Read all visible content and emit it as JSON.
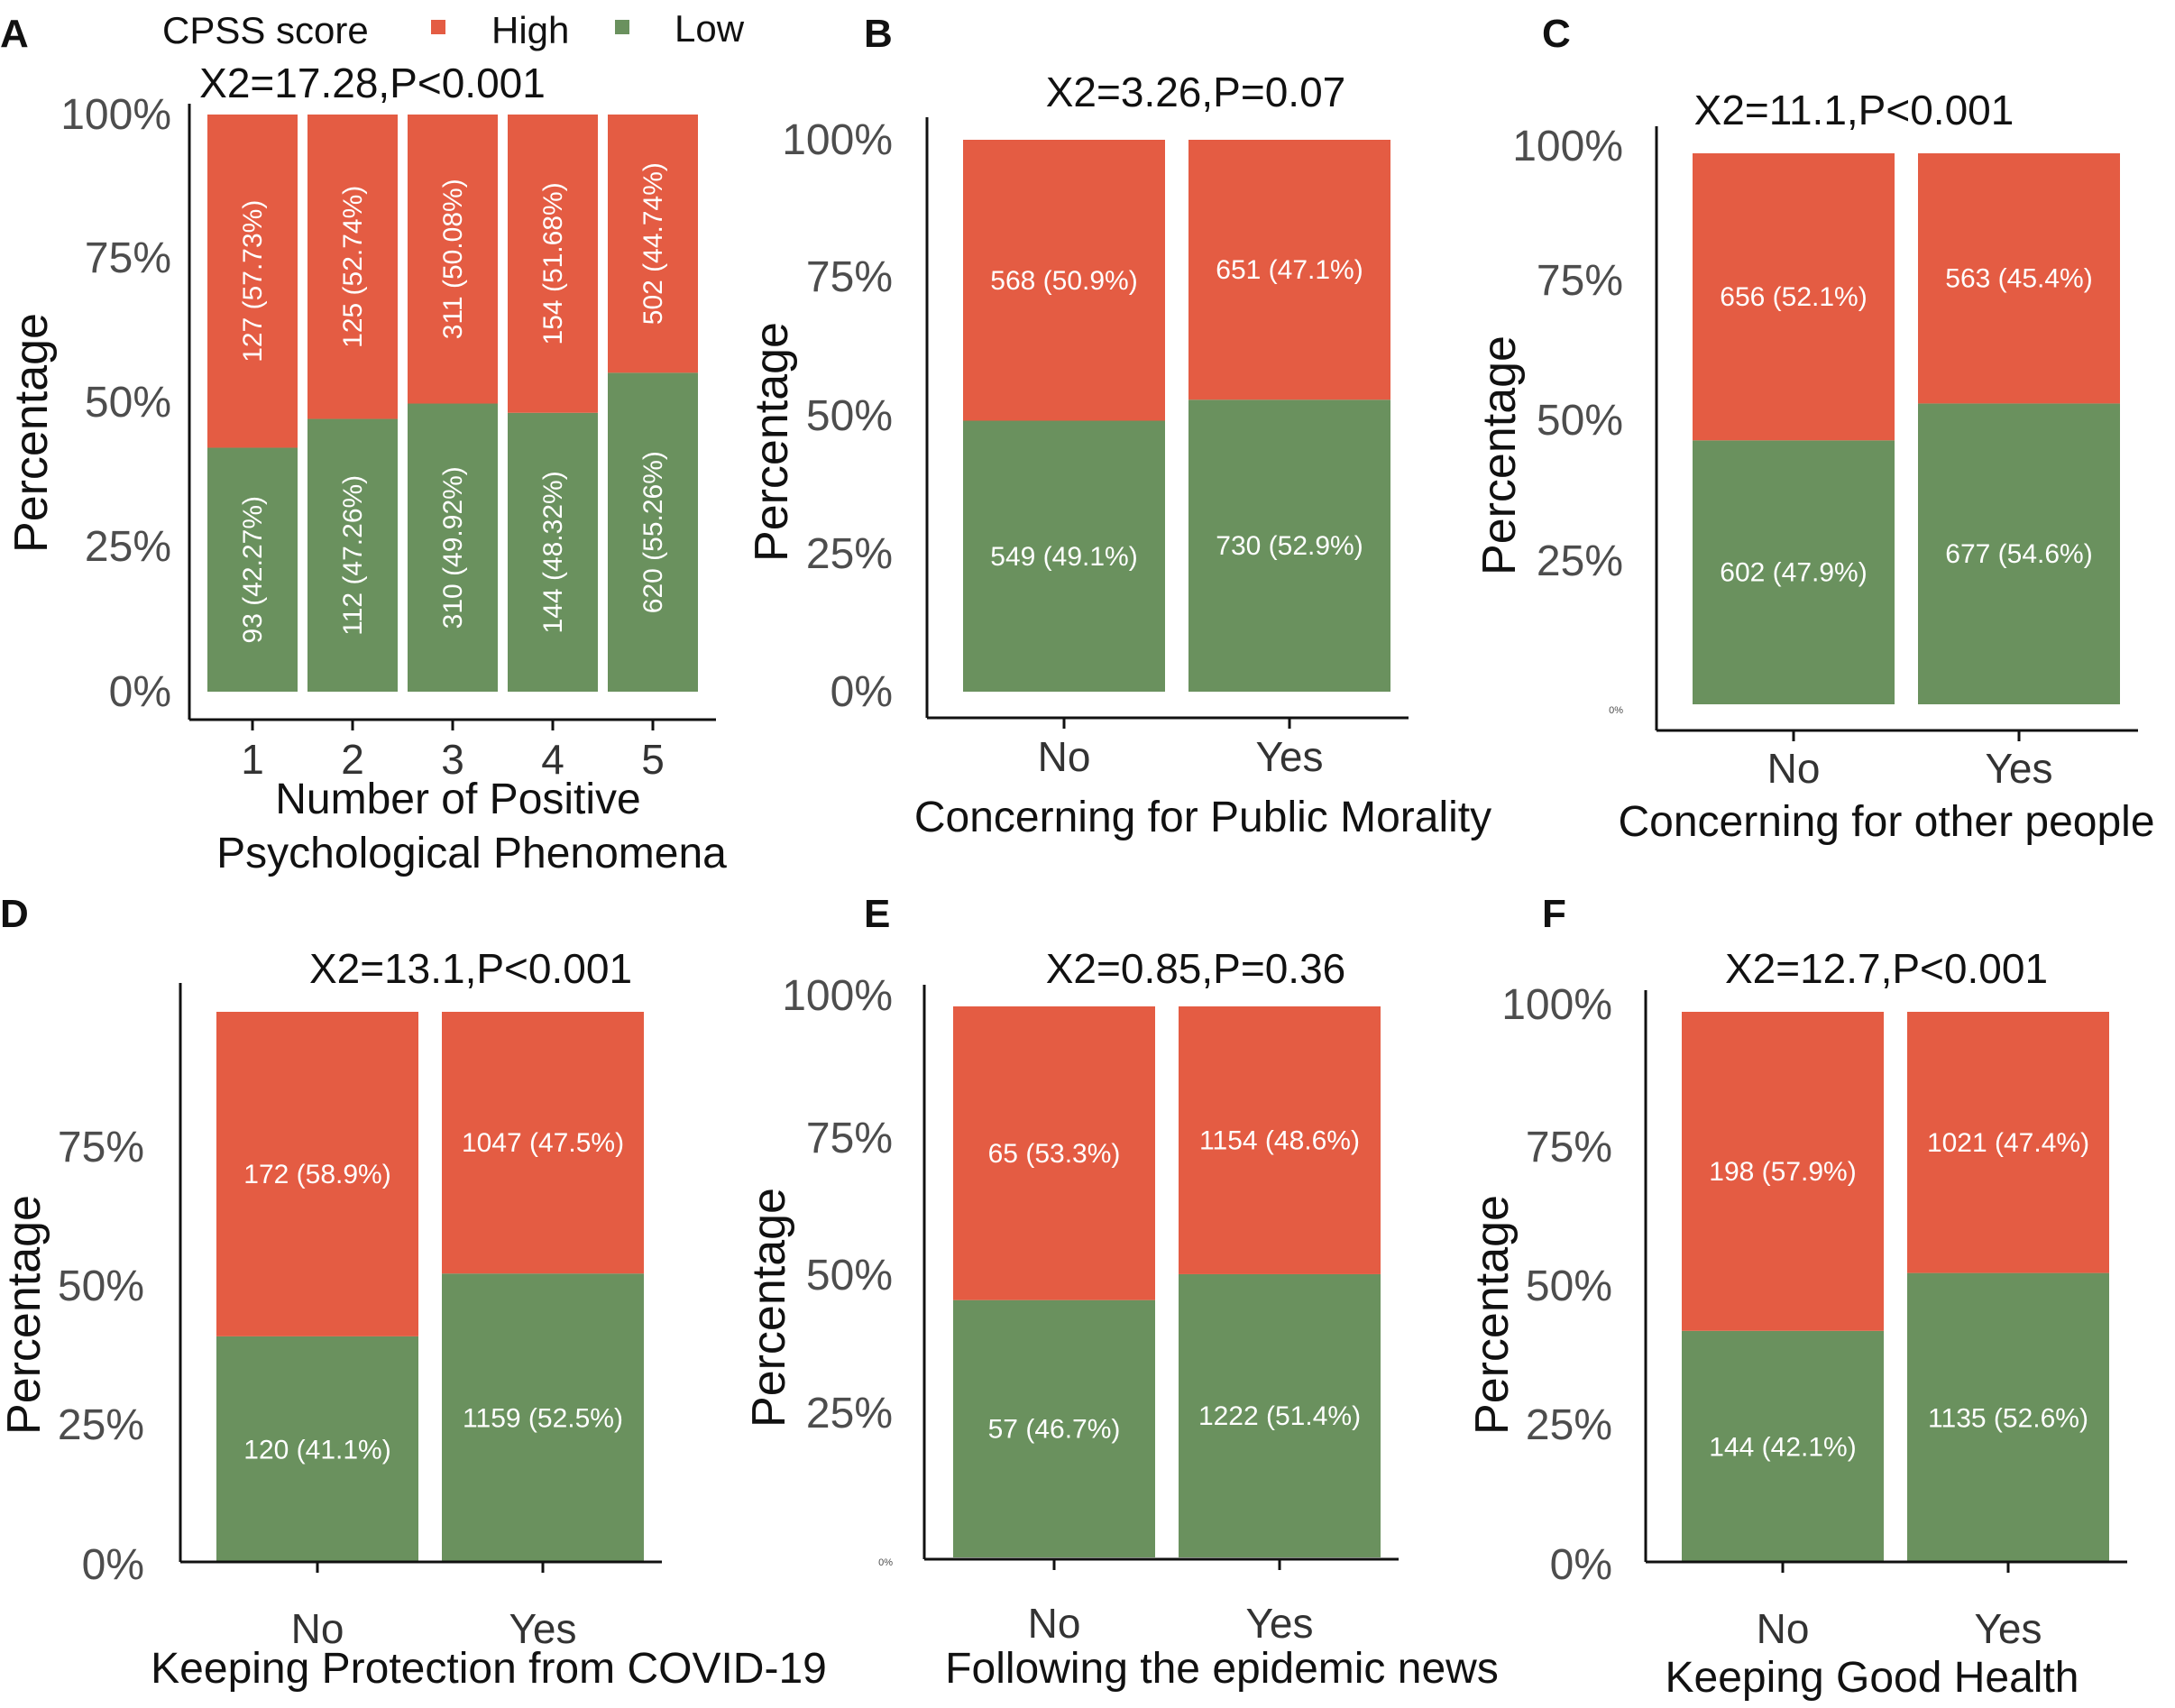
{
  "legend": {
    "title": "CPSS score",
    "items": [
      {
        "label": "High",
        "color": "#E45C43"
      },
      {
        "label": "Low",
        "color": "#6A915E"
      }
    ]
  },
  "chart_data": [
    {
      "panel": "A",
      "type": "bar",
      "stacked": true,
      "title": "X2=17.28,P<0.001",
      "ylabel": "Percentage",
      "xlabel": [
        "Number of Positive",
        "Psychological  Phenomena"
      ],
      "categories": [
        "1",
        "2",
        "3",
        "4",
        "5"
      ],
      "label_orientation": "vertical",
      "yticks": [
        "0%",
        "25%",
        "50%",
        "75%",
        "100%"
      ],
      "ylim": [
        0,
        100
      ],
      "series": [
        {
          "name": "Low",
          "color": "#6A915E",
          "values": [
            42.27,
            47.26,
            49.92,
            48.32,
            55.26
          ],
          "labels": [
            "93 (42.27%)",
            "112 (47.26%)",
            "310 (49.92%)",
            "144 (48.32%)",
            "620 (55.26%)"
          ]
        },
        {
          "name": "High",
          "color": "#E45C43",
          "values": [
            57.73,
            52.74,
            50.08,
            51.68,
            44.74
          ],
          "labels": [
            "127 (57.73%)",
            "125 (52.74%)",
            "311 (50.08%)",
            "154 (51.68%)",
            "502 (44.74%)"
          ]
        }
      ]
    },
    {
      "panel": "B",
      "type": "bar",
      "stacked": true,
      "title": "X2=3.26,P=0.07",
      "ylabel": "Percentage",
      "xlabel": [
        "Concerning for Public Morality"
      ],
      "categories": [
        "No",
        "Yes"
      ],
      "label_orientation": "horizontal",
      "yticks": [
        "0%",
        "25%",
        "50%",
        "75%",
        "100%"
      ],
      "ylim": [
        0,
        100
      ],
      "series": [
        {
          "name": "Low",
          "color": "#6A915E",
          "values": [
            49.1,
            52.9
          ],
          "labels": [
            "549 (49.1%)",
            "730 (52.9%)"
          ]
        },
        {
          "name": "High",
          "color": "#E45C43",
          "values": [
            50.9,
            47.1
          ],
          "labels": [
            "568 (50.9%)",
            "651 (47.1%)"
          ]
        }
      ]
    },
    {
      "panel": "C",
      "type": "bar",
      "stacked": true,
      "title": "X2=11.1,P<0.001",
      "ylabel": "Percentage",
      "xlabel": [
        "Concerning for other people"
      ],
      "categories": [
        "No",
        "Yes"
      ],
      "label_orientation": "horizontal",
      "yticks": [
        "0%",
        "25%",
        "50%",
        "75%",
        "100%"
      ],
      "ylim": [
        0,
        100
      ],
      "series": [
        {
          "name": "Low",
          "color": "#6A915E",
          "values": [
            47.9,
            54.6
          ],
          "labels": [
            "602 (47.9%)",
            "677 (54.6%)"
          ]
        },
        {
          "name": "High",
          "color": "#E45C43",
          "values": [
            52.1,
            45.4
          ],
          "labels": [
            "656 (52.1%)",
            "563 (45.4%)"
          ]
        }
      ]
    },
    {
      "panel": "D",
      "type": "bar",
      "stacked": true,
      "title": "X2=13.1,P<0.001",
      "ylabel": "Percentage",
      "xlabel": [
        "Keeping Protection from COVID-19"
      ],
      "categories": [
        "No",
        "Yes"
      ],
      "label_orientation": "horizontal",
      "yticks": [
        "0%",
        "25%",
        "50%",
        "75%"
      ],
      "ylim": [
        0,
        100
      ],
      "series": [
        {
          "name": "Low",
          "color": "#6A915E",
          "values": [
            41.1,
            52.5
          ],
          "labels": [
            "120 (41.1%)",
            "1159 (52.5%)"
          ]
        },
        {
          "name": "High",
          "color": "#E45C43",
          "values": [
            58.9,
            47.5
          ],
          "labels": [
            "172 (58.9%)",
            "1047 (47.5%)"
          ]
        }
      ]
    },
    {
      "panel": "E",
      "type": "bar",
      "stacked": true,
      "title": "X2=0.85,P=0.36",
      "ylabel": "Percentage",
      "xlabel": [
        "Following the epidemic news"
      ],
      "categories": [
        "No",
        "Yes"
      ],
      "label_orientation": "horizontal",
      "yticks": [
        "0%",
        "25%",
        "50%",
        "75%",
        "100%"
      ],
      "ylim": [
        0,
        100
      ],
      "series": [
        {
          "name": "Low",
          "color": "#6A915E",
          "values": [
            46.7,
            51.4
          ],
          "labels": [
            "57 (46.7%)",
            "1222 (51.4%)"
          ]
        },
        {
          "name": "High",
          "color": "#E45C43",
          "values": [
            53.3,
            48.6
          ],
          "labels": [
            "65 (53.3%)",
            "1154 (48.6%)"
          ]
        }
      ]
    },
    {
      "panel": "F",
      "type": "bar",
      "stacked": true,
      "title": "X2=12.7,P<0.001",
      "ylabel": "Percentage",
      "xlabel": [
        "Keeping Good Health"
      ],
      "categories": [
        "No",
        "Yes"
      ],
      "label_orientation": "horizontal",
      "yticks": [
        "0%",
        "25%",
        "50%",
        "75%",
        "100%"
      ],
      "ylim": [
        0,
        100
      ],
      "series": [
        {
          "name": "Low",
          "color": "#6A915E",
          "values": [
            42.1,
            52.6
          ],
          "labels": [
            "144 (42.1%)",
            "1135 (52.6%)"
          ]
        },
        {
          "name": "High",
          "color": "#E45C43",
          "values": [
            57.9,
            47.4
          ],
          "labels": [
            "198 (57.9%)",
            "1021 (47.4%)"
          ]
        }
      ]
    }
  ]
}
